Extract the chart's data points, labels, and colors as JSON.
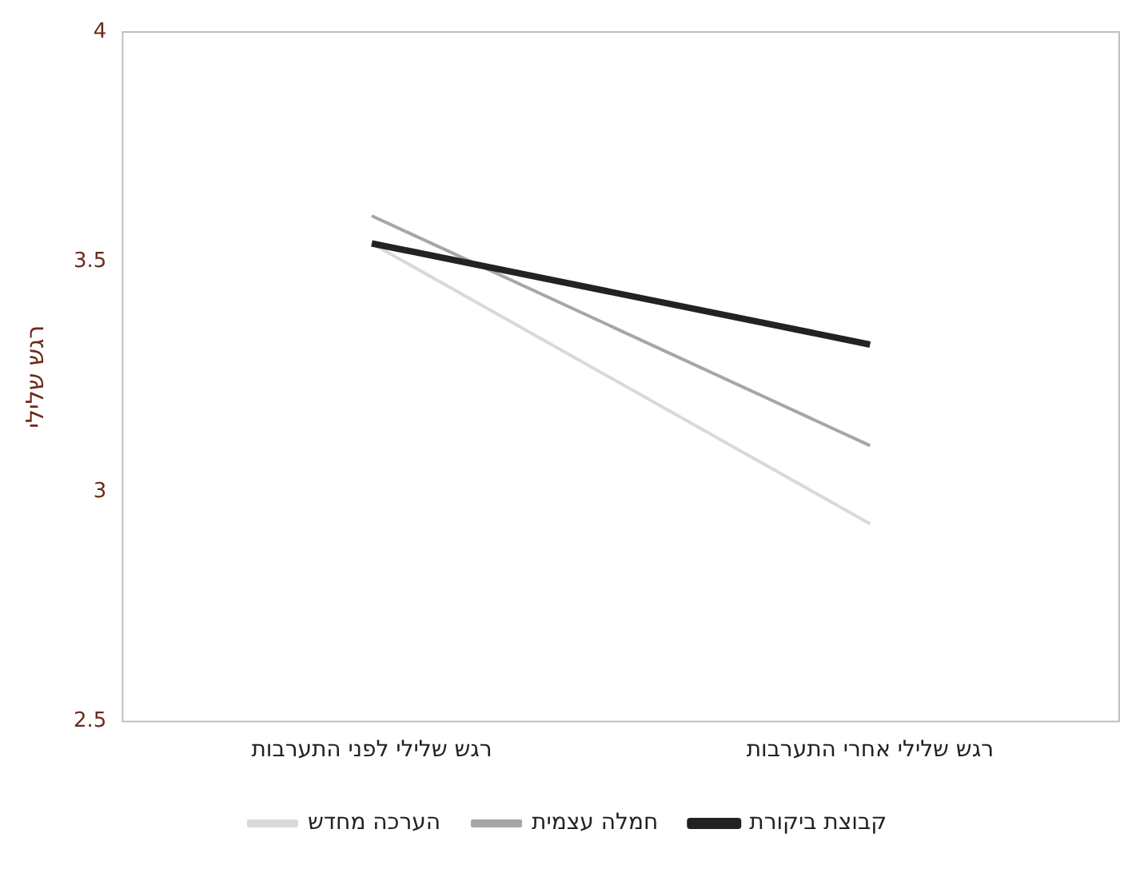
{
  "chart_data": {
    "type": "line",
    "ylabel": "רגש שלילי",
    "categories": [
      "רגש שלילי לפני התערבות",
      "רגש שלילי אחרי התערבות"
    ],
    "series": [
      {
        "name": "קבוצת ביקורת",
        "color": "#222222",
        "values": [
          3.54,
          3.32
        ]
      },
      {
        "name": "חמלה עצמית",
        "color": "#a6a6a6",
        "values": [
          3.6,
          3.1
        ]
      },
      {
        "name": "הערכה מחדש",
        "color": "#d9d9d9",
        "values": [
          3.54,
          2.93
        ]
      }
    ],
    "ylim": [
      2.5,
      4
    ],
    "yticks": [
      2.5,
      3,
      3.5,
      4
    ],
    "grid": false,
    "legend": "bottom",
    "marker": "none",
    "line_style": "solid"
  }
}
